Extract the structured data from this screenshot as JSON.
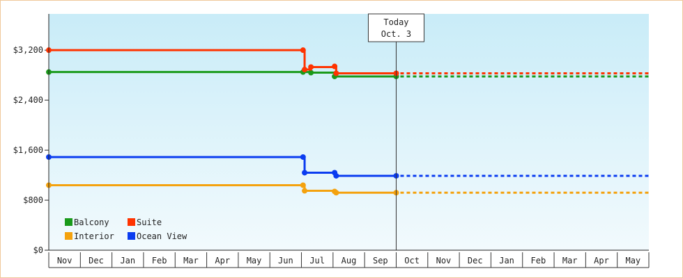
{
  "chart_data": {
    "type": "line",
    "line_style": "step",
    "y_tick_labels": [
      "$0",
      "$800",
      "$1,600",
      "$2,400",
      "$3,200"
    ],
    "y_ticks": [
      0,
      800,
      1600,
      2400,
      3200
    ],
    "ylim": [
      0,
      3780
    ],
    "x_labels": [
      "Nov",
      "Dec",
      "Jan",
      "Feb",
      "Mar",
      "Apr",
      "May",
      "Jun",
      "Jul",
      "Aug",
      "Sep",
      "Oct",
      "Nov",
      "Dec",
      "Jan",
      "Feb",
      "Mar",
      "Apr",
      "May"
    ],
    "x_range": [
      0,
      19
    ],
    "today": {
      "line1": "Today",
      "line2": "Oct. 3",
      "x": 11.0
    },
    "grid": false,
    "legend_position": "bottom-left",
    "series": [
      {
        "name": "Balcony",
        "color": "#1a9a1a",
        "points": [
          [
            0,
            2850
          ],
          [
            8.05,
            2850
          ],
          [
            8.3,
            2840
          ],
          [
            9.05,
            2780
          ],
          [
            11.0,
            2780
          ]
        ],
        "projected_value": 2780
      },
      {
        "name": "Suite",
        "color": "#ff3300",
        "points": [
          [
            0,
            3200
          ],
          [
            8.05,
            3200
          ],
          [
            8.1,
            2890
          ],
          [
            8.3,
            2930
          ],
          [
            9.05,
            2940
          ],
          [
            9.1,
            2830
          ],
          [
            11.0,
            2830
          ]
        ],
        "projected_value": 2830
      },
      {
        "name": "Interior",
        "color": "#f4a20e",
        "points": [
          [
            0,
            1040
          ],
          [
            8.05,
            1040
          ],
          [
            8.1,
            950
          ],
          [
            9.05,
            940
          ],
          [
            9.1,
            920
          ],
          [
            11.0,
            920
          ]
        ],
        "projected_value": 920
      },
      {
        "name": "Ocean View",
        "color": "#0a3cf0",
        "points": [
          [
            0,
            1490
          ],
          [
            8.05,
            1490
          ],
          [
            8.1,
            1240
          ],
          [
            9.05,
            1240
          ],
          [
            9.1,
            1190
          ],
          [
            11.0,
            1190
          ]
        ],
        "projected_value": 1190
      }
    ]
  }
}
